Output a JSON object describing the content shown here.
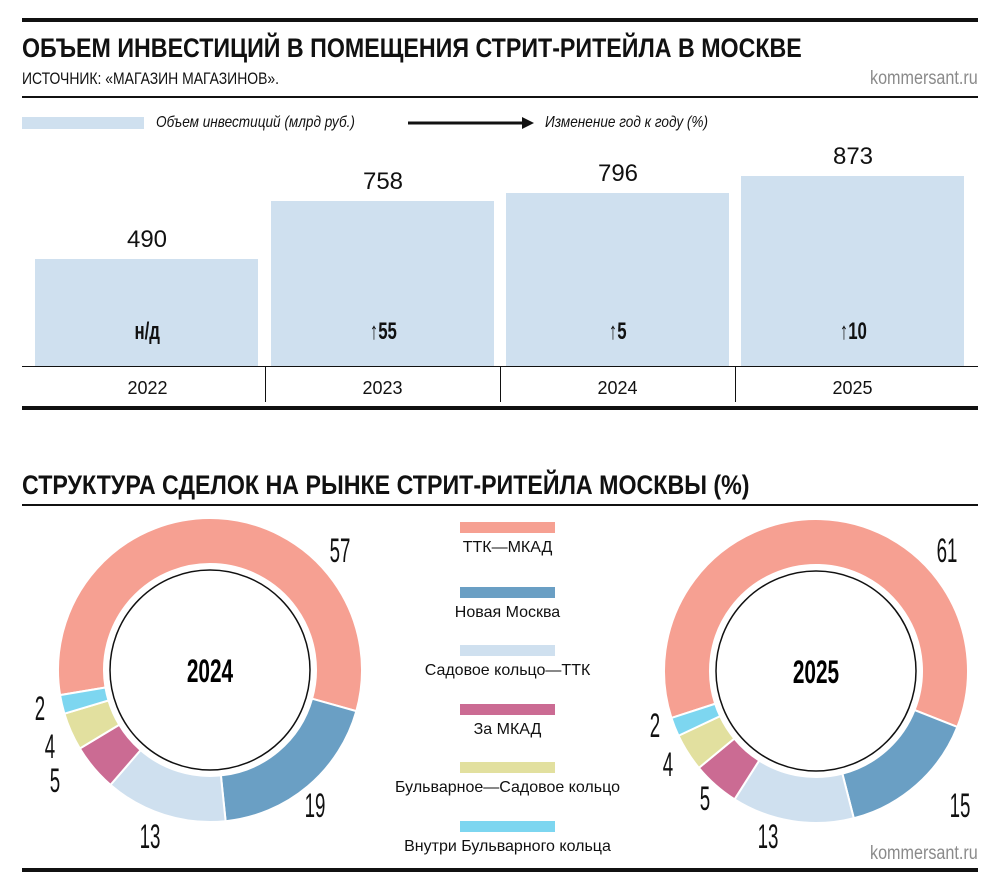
{
  "header": {
    "title": "ОБЪЕМ ИНВЕСТИЦИЙ В ПОМЕЩЕНИЯ СТРИТ-РИТЕЙЛА В МОСКВЕ",
    "source": "ИСТОЧНИК: «МАГАЗИН МАГАЗИНОВ».",
    "brand": "kommersant.ru"
  },
  "chart_data": [
    {
      "type": "bar",
      "title": "ОБЪЕМ ИНВЕСТИЦИЙ В ПОМЕЩЕНИЯ СТРИТ-РИТЕЙЛА В МОСКВЕ",
      "legend": {
        "bars": "Объем инвестиций (млрд руб.)",
        "arrow": "Изменение год к году (%)",
        "placement": "top-left"
      },
      "categories": [
        "2022",
        "2023",
        "2024",
        "2025"
      ],
      "values": [
        490,
        758,
        796,
        873
      ],
      "value_labels": [
        "490",
        "758",
        "796",
        "873"
      ],
      "changes": [
        "н/д",
        "↑55",
        "↑5",
        "↑10"
      ],
      "color": "#cfe0ef",
      "ylim": [
        0,
        873
      ]
    },
    {
      "type": "pie",
      "title": "СТРУКТУРА СДЕЛОК НА РЫНКЕ СТРИТ-РИТЕЙЛА МОСКВЫ (%)",
      "categories": [
        "ТТК—МКАД",
        "Новая Москва",
        "Садовое кольцо—ТТК",
        "За МКАД",
        "Бульварное—Садовое кольцо",
        "Внутри Бульварного кольца"
      ],
      "colors": [
        "#f6a092",
        "#6a9fc4",
        "#cfe0ef",
        "#cb6b93",
        "#e2e09f",
        "#7dd6f0"
      ],
      "series": [
        {
          "name": "2024",
          "values": [
            57,
            19,
            13,
            5,
            4,
            2
          ]
        },
        {
          "name": "2025",
          "values": [
            61,
            15,
            13,
            5,
            4,
            2
          ]
        }
      ]
    }
  ],
  "footer": {
    "brand": "kommersant.ru"
  }
}
